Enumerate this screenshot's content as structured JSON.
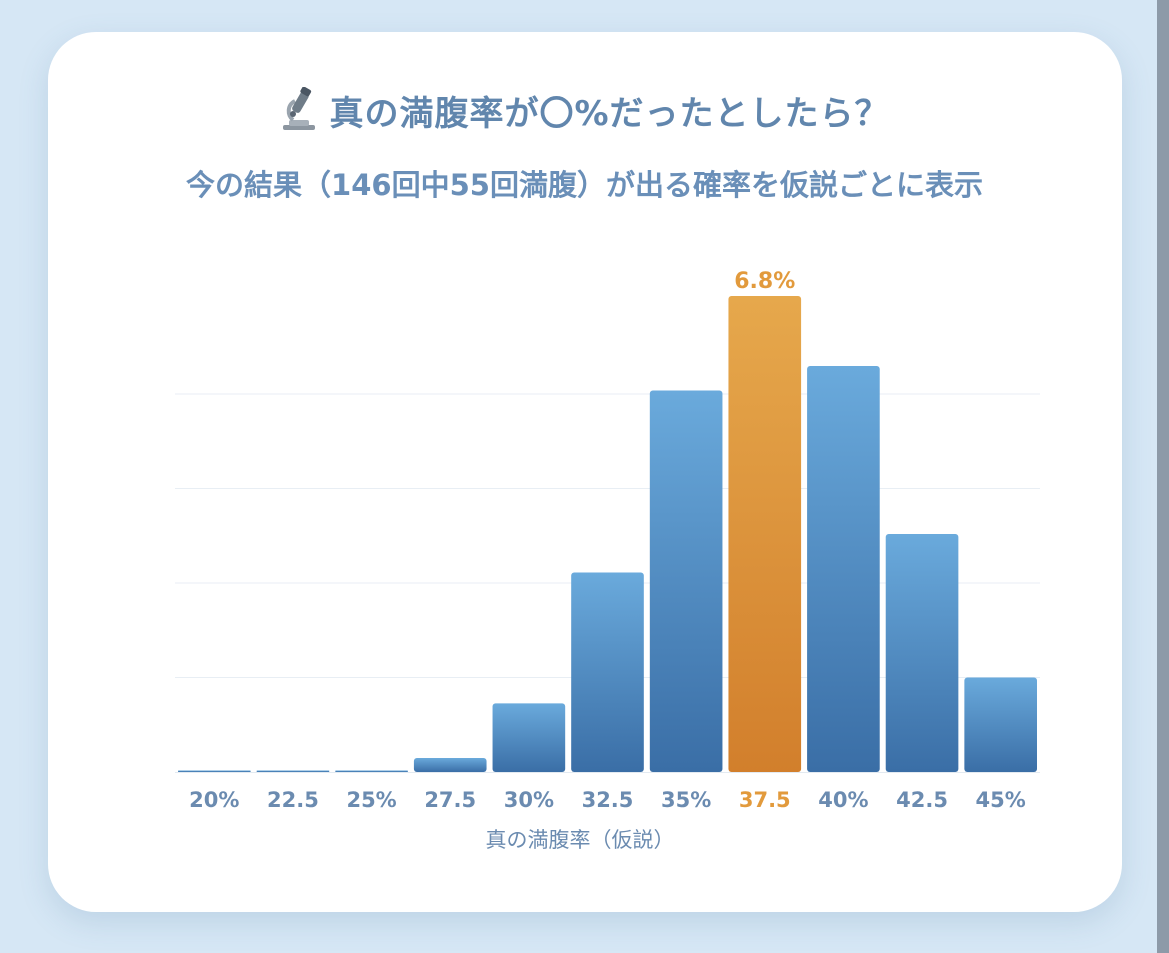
{
  "header": {
    "title": "真の満腹率が〇%だったとしたら？",
    "subtitle": "今の結果（146回中55回満腹）が出る確率を仮説ごとに表示"
  },
  "icons": {
    "title_icon": "microscope-icon"
  },
  "colors": {
    "bar_top": "#6aaadc",
    "bar_bottom": "#3a6ea6",
    "highlight_top": "#e6a84c",
    "highlight_bottom": "#d27f2c",
    "tick_text": "#6b8bb0",
    "highlight_text": "#e29a3c",
    "grid": "#e8eef4"
  },
  "chart_data": {
    "type": "bar",
    "categories": [
      "20%",
      "22.5",
      "25%",
      "27.5",
      "30%",
      "32.5",
      "35%",
      "37.5",
      "40%",
      "42.5",
      "45%"
    ],
    "values": [
      0.0,
      0.0,
      0.02,
      0.2,
      0.98,
      2.85,
      5.45,
      6.8,
      5.8,
      3.4,
      1.35
    ],
    "highlight_index": 7,
    "highlight_label": "6.8%",
    "xlabel": "真の満腹率（仮説）",
    "ylabel": "",
    "ylim": [
      0,
      7
    ],
    "grid": true,
    "gridlines": [
      1.35,
      2.7,
      4.05,
      5.4
    ]
  }
}
